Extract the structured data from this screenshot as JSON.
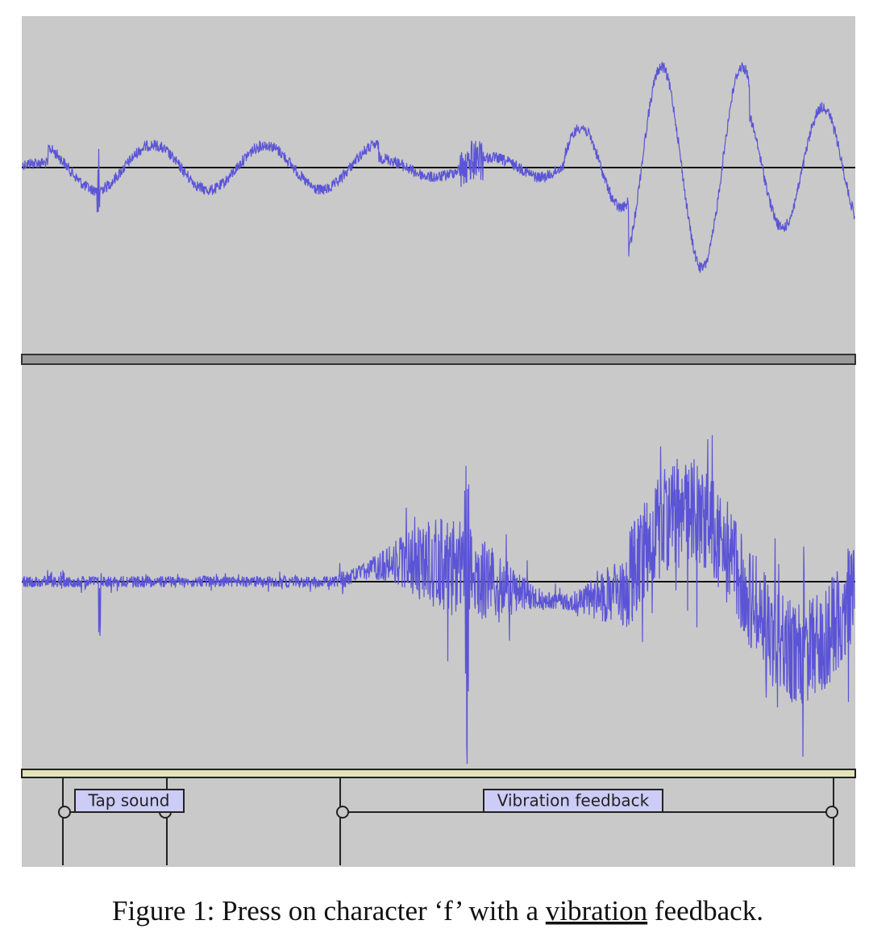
{
  "labels": {
    "tap": "Tap sound",
    "vibration": "Vibration feedback"
  },
  "caption": [
    "Figure 1: Press on character ‘f’ with a ",
    "vibration",
    " feedback."
  ]
}
